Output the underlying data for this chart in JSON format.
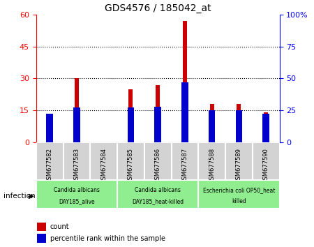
{
  "title": "GDS4576 / 185042_at",
  "samples": [
    "GSM677582",
    "GSM677583",
    "GSM677584",
    "GSM677585",
    "GSM677586",
    "GSM677587",
    "GSM677588",
    "GSM677589",
    "GSM677590"
  ],
  "counts": [
    6,
    30,
    0,
    25,
    27,
    57,
    18,
    18,
    14
  ],
  "percentile_ranks": [
    22,
    27,
    0,
    27,
    28,
    47,
    25,
    25,
    22
  ],
  "ylim_left": [
    0,
    60
  ],
  "ylim_right": [
    0,
    100
  ],
  "yticks_left": [
    0,
    15,
    30,
    45,
    60
  ],
  "yticks_right": [
    0,
    25,
    50,
    75,
    100
  ],
  "ytick_labels_right": [
    "0",
    "25",
    "50",
    "75",
    "100%"
  ],
  "bar_color": "#cc0000",
  "percentile_color": "#0000cc",
  "groups": [
    {
      "label": "Candida albicans\nDAY185_alive",
      "start": 0,
      "end": 3
    },
    {
      "label": "Candida albicans\nDAY185_heat-killed",
      "start": 3,
      "end": 6
    },
    {
      "label": "Escherichia coli OP50_heat\nkilled",
      "start": 6,
      "end": 9
    }
  ],
  "group_color": "#90ee90",
  "sample_box_color": "#d3d3d3",
  "infection_label": "infection",
  "legend_count_label": "count",
  "legend_percentile_label": "percentile rank within the sample",
  "bar_width": 0.15,
  "percentile_bar_width": 0.25
}
